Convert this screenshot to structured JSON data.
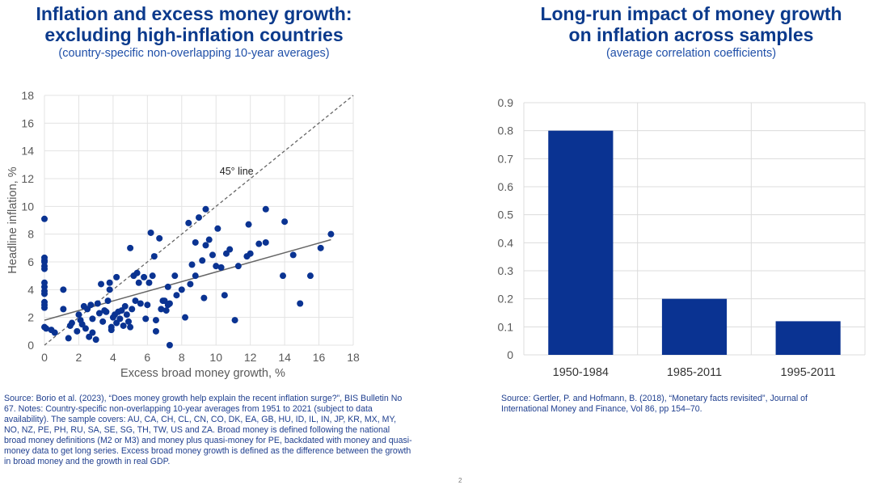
{
  "left_panel": {
    "title_line1": "Inflation and excess money growth:",
    "title_line2": "excluding high-inflation countries",
    "subtitle": "(country-specific non-overlapping 10-year averages)",
    "source": "Source: Borio et al. (2023), “Does money growth help explain the recent inflation surge?”, BIS Bulletin No 67. Notes: Country-specific non-overlapping 10-year averages from 1951 to 2021 (subject to data availability). The sample covers: AU, CA, CH, CL, CN, CO, DK, EA, GB, HU, ID, IL, IN, JP, KR, MX, MY, NO, NZ, PE, PH, RU, SA, SE, SG, TH, TW, US and ZA. Broad money is defined following the national broad money definitions (M2 or M3) and money plus quasi-money for PE, backdated with money and quasi-money data to get long series. Excess broad money growth is defined as the difference between the growth in broad money and the growth in real GDP."
  },
  "right_panel": {
    "title_line1": "Long-run impact of money growth",
    "title_line2": "on inflation across samples",
    "subtitle": "(average correlation coefficients)",
    "source": "Source: Gertler, P. and Hofmann, B. (2018), “Monetary facts revisited”, Journal of International Money and Finance, Vol 86, pp 154–70."
  },
  "page_number": "2",
  "colors": {
    "accent": "#0b3a8c",
    "dot": "#0a3392",
    "bar": "#0a3392",
    "fit": "#666666",
    "diag": "#666666"
  },
  "chart_data": [
    {
      "type": "scatter",
      "title": "Inflation and excess money growth: excluding high-inflation countries",
      "xlabel": "Excess broad money growth, %",
      "ylabel": "Headline inflation, %",
      "xlim": [
        0,
        18
      ],
      "ylim": [
        0,
        18
      ],
      "xticks": [
        "0",
        "2",
        "4",
        "6",
        "8",
        "10",
        "12",
        "14",
        "16",
        "18"
      ],
      "yticks": [
        "0",
        "2",
        "4",
        "6",
        "8",
        "10",
        "12",
        "14",
        "16",
        "18"
      ],
      "annotation": "45° line",
      "fit_line": {
        "x": [
          0,
          16.7
        ],
        "y": [
          1.8,
          7.6
        ]
      },
      "diagonal": {
        "x": [
          0,
          18
        ],
        "y": [
          0,
          18
        ]
      },
      "points": [
        [
          0,
          9.1
        ],
        [
          0,
          6.3
        ],
        [
          0,
          6.1
        ],
        [
          0,
          6.0
        ],
        [
          0,
          5.7
        ],
        [
          0,
          5.5
        ],
        [
          0,
          4.5
        ],
        [
          0,
          4.2
        ],
        [
          0,
          3.9
        ],
        [
          0,
          3.7
        ],
        [
          0,
          3.1
        ],
        [
          0,
          2.9
        ],
        [
          0,
          2.7
        ],
        [
          0,
          1.3
        ],
        [
          0.1,
          1.2
        ],
        [
          0.4,
          1.1
        ],
        [
          0.6,
          0.9
        ],
        [
          1.1,
          4.0
        ],
        [
          1.1,
          2.6
        ],
        [
          1.4,
          0.5
        ],
        [
          1.5,
          1.4
        ],
        [
          1.6,
          1.6
        ],
        [
          1.9,
          1.0
        ],
        [
          2.0,
          2.2
        ],
        [
          2.1,
          1.8
        ],
        [
          2.2,
          1.5
        ],
        [
          2.3,
          2.8
        ],
        [
          2.4,
          1.2
        ],
        [
          2.5,
          2.6
        ],
        [
          2.6,
          0.6
        ],
        [
          2.7,
          2.9
        ],
        [
          2.8,
          1.9
        ],
        [
          2.8,
          0.9
        ],
        [
          3.0,
          0.4
        ],
        [
          3.1,
          3.0
        ],
        [
          3.2,
          2.3
        ],
        [
          3.3,
          4.4
        ],
        [
          3.4,
          1.7
        ],
        [
          3.5,
          2.5
        ],
        [
          3.6,
          2.4
        ],
        [
          3.7,
          3.2
        ],
        [
          3.8,
          4.5
        ],
        [
          3.8,
          4.0
        ],
        [
          3.9,
          1.1
        ],
        [
          3.9,
          1.3
        ],
        [
          4.0,
          2.0
        ],
        [
          4.1,
          2.2
        ],
        [
          4.2,
          4.9
        ],
        [
          4.2,
          1.6
        ],
        [
          4.3,
          2.4
        ],
        [
          4.4,
          1.9
        ],
        [
          4.5,
          2.5
        ],
        [
          4.6,
          1.4
        ],
        [
          4.7,
          2.8
        ],
        [
          4.8,
          2.2
        ],
        [
          4.9,
          1.7
        ],
        [
          5.0,
          1.3
        ],
        [
          5.0,
          7.0
        ],
        [
          5.1,
          2.6
        ],
        [
          5.2,
          5.0
        ],
        [
          5.3,
          3.2
        ],
        [
          5.4,
          5.2
        ],
        [
          5.5,
          4.5
        ],
        [
          5.6,
          3.0
        ],
        [
          5.8,
          4.9
        ],
        [
          5.9,
          1.9
        ],
        [
          6.0,
          2.9
        ],
        [
          6.1,
          4.5
        ],
        [
          6.2,
          8.1
        ],
        [
          6.3,
          5.0
        ],
        [
          6.4,
          6.4
        ],
        [
          6.5,
          1.8
        ],
        [
          6.5,
          1.0
        ],
        [
          6.7,
          7.7
        ],
        [
          6.8,
          2.6
        ],
        [
          6.9,
          3.2
        ],
        [
          7.0,
          3.2
        ],
        [
          7.1,
          2.5
        ],
        [
          7.2,
          2.9
        ],
        [
          7.2,
          4.2
        ],
        [
          7.3,
          0.0
        ],
        [
          7.3,
          3.0
        ],
        [
          7.6,
          5.0
        ],
        [
          7.7,
          3.6
        ],
        [
          8.0,
          4.0
        ],
        [
          8.2,
          2.0
        ],
        [
          8.4,
          8.8
        ],
        [
          8.5,
          4.4
        ],
        [
          8.6,
          5.8
        ],
        [
          8.8,
          7.4
        ],
        [
          8.8,
          5.0
        ],
        [
          9.0,
          9.2
        ],
        [
          9.2,
          6.1
        ],
        [
          9.3,
          3.4
        ],
        [
          9.4,
          7.2
        ],
        [
          9.4,
          9.8
        ],
        [
          9.6,
          7.6
        ],
        [
          9.8,
          6.5
        ],
        [
          10.0,
          5.7
        ],
        [
          10.1,
          8.4
        ],
        [
          10.3,
          5.6
        ],
        [
          10.5,
          3.6
        ],
        [
          10.6,
          6.6
        ],
        [
          10.8,
          6.9
        ],
        [
          11.1,
          1.8
        ],
        [
          11.3,
          5.7
        ],
        [
          11.8,
          6.4
        ],
        [
          12.0,
          6.6
        ],
        [
          11.9,
          8.7
        ],
        [
          12.5,
          7.3
        ],
        [
          12.9,
          9.8
        ],
        [
          12.9,
          7.4
        ],
        [
          13.9,
          5.0
        ],
        [
          14.0,
          8.9
        ],
        [
          14.5,
          6.5
        ],
        [
          14.9,
          3.0
        ],
        [
          15.5,
          5.0
        ],
        [
          16.1,
          7.0
        ],
        [
          16.7,
          8.0
        ]
      ]
    },
    {
      "type": "bar",
      "title": "Long-run impact of money growth on inflation across samples",
      "categories": [
        "1950-1984",
        "1985-2011",
        "1995-2011"
      ],
      "values": [
        0.8,
        0.2,
        0.12
      ],
      "ylim": [
        0,
        0.9
      ],
      "yticks": [
        "0",
        "0.1",
        "0.2",
        "0.3",
        "0.4",
        "0.5",
        "0.6",
        "0.7",
        "0.8",
        "0.9"
      ]
    }
  ]
}
